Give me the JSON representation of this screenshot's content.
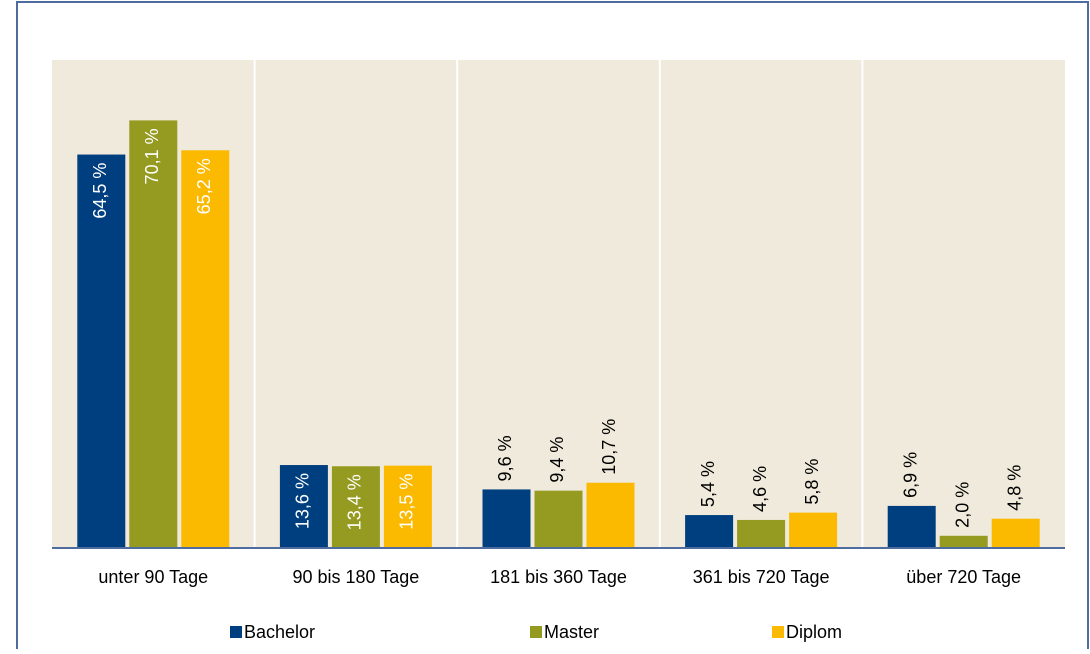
{
  "chart_data": {
    "type": "bar",
    "categories": [
      "unter 90 Tage",
      "90 bis 180 Tage",
      "181 bis 360 Tage",
      "361 bis 720 Tage",
      "über 720 Tage"
    ],
    "series": [
      {
        "name": "Bachelor",
        "color": "#003f7f",
        "values": [
          64.5,
          13.6,
          9.6,
          5.4,
          6.9
        ],
        "value_labels": [
          "64,5 %",
          "13,6 %",
          "9,6 %",
          "5,4 %",
          "6,9 %"
        ]
      },
      {
        "name": "Master",
        "color": "#959a20",
        "values": [
          70.1,
          13.4,
          9.4,
          4.6,
          2.0
        ],
        "value_labels": [
          "70,1 %",
          "13,4 %",
          "9,4 %",
          "4,6 %",
          "2,0 %"
        ]
      },
      {
        "name": "Diplom",
        "color": "#fbb900",
        "values": [
          65.2,
          13.5,
          10.7,
          5.8,
          4.8
        ],
        "value_labels": [
          "65,2 %",
          "13,5 %",
          "10,7 %",
          "5,8 %",
          "4,8 %"
        ]
      }
    ],
    "ylim": [
      0,
      80
    ]
  }
}
